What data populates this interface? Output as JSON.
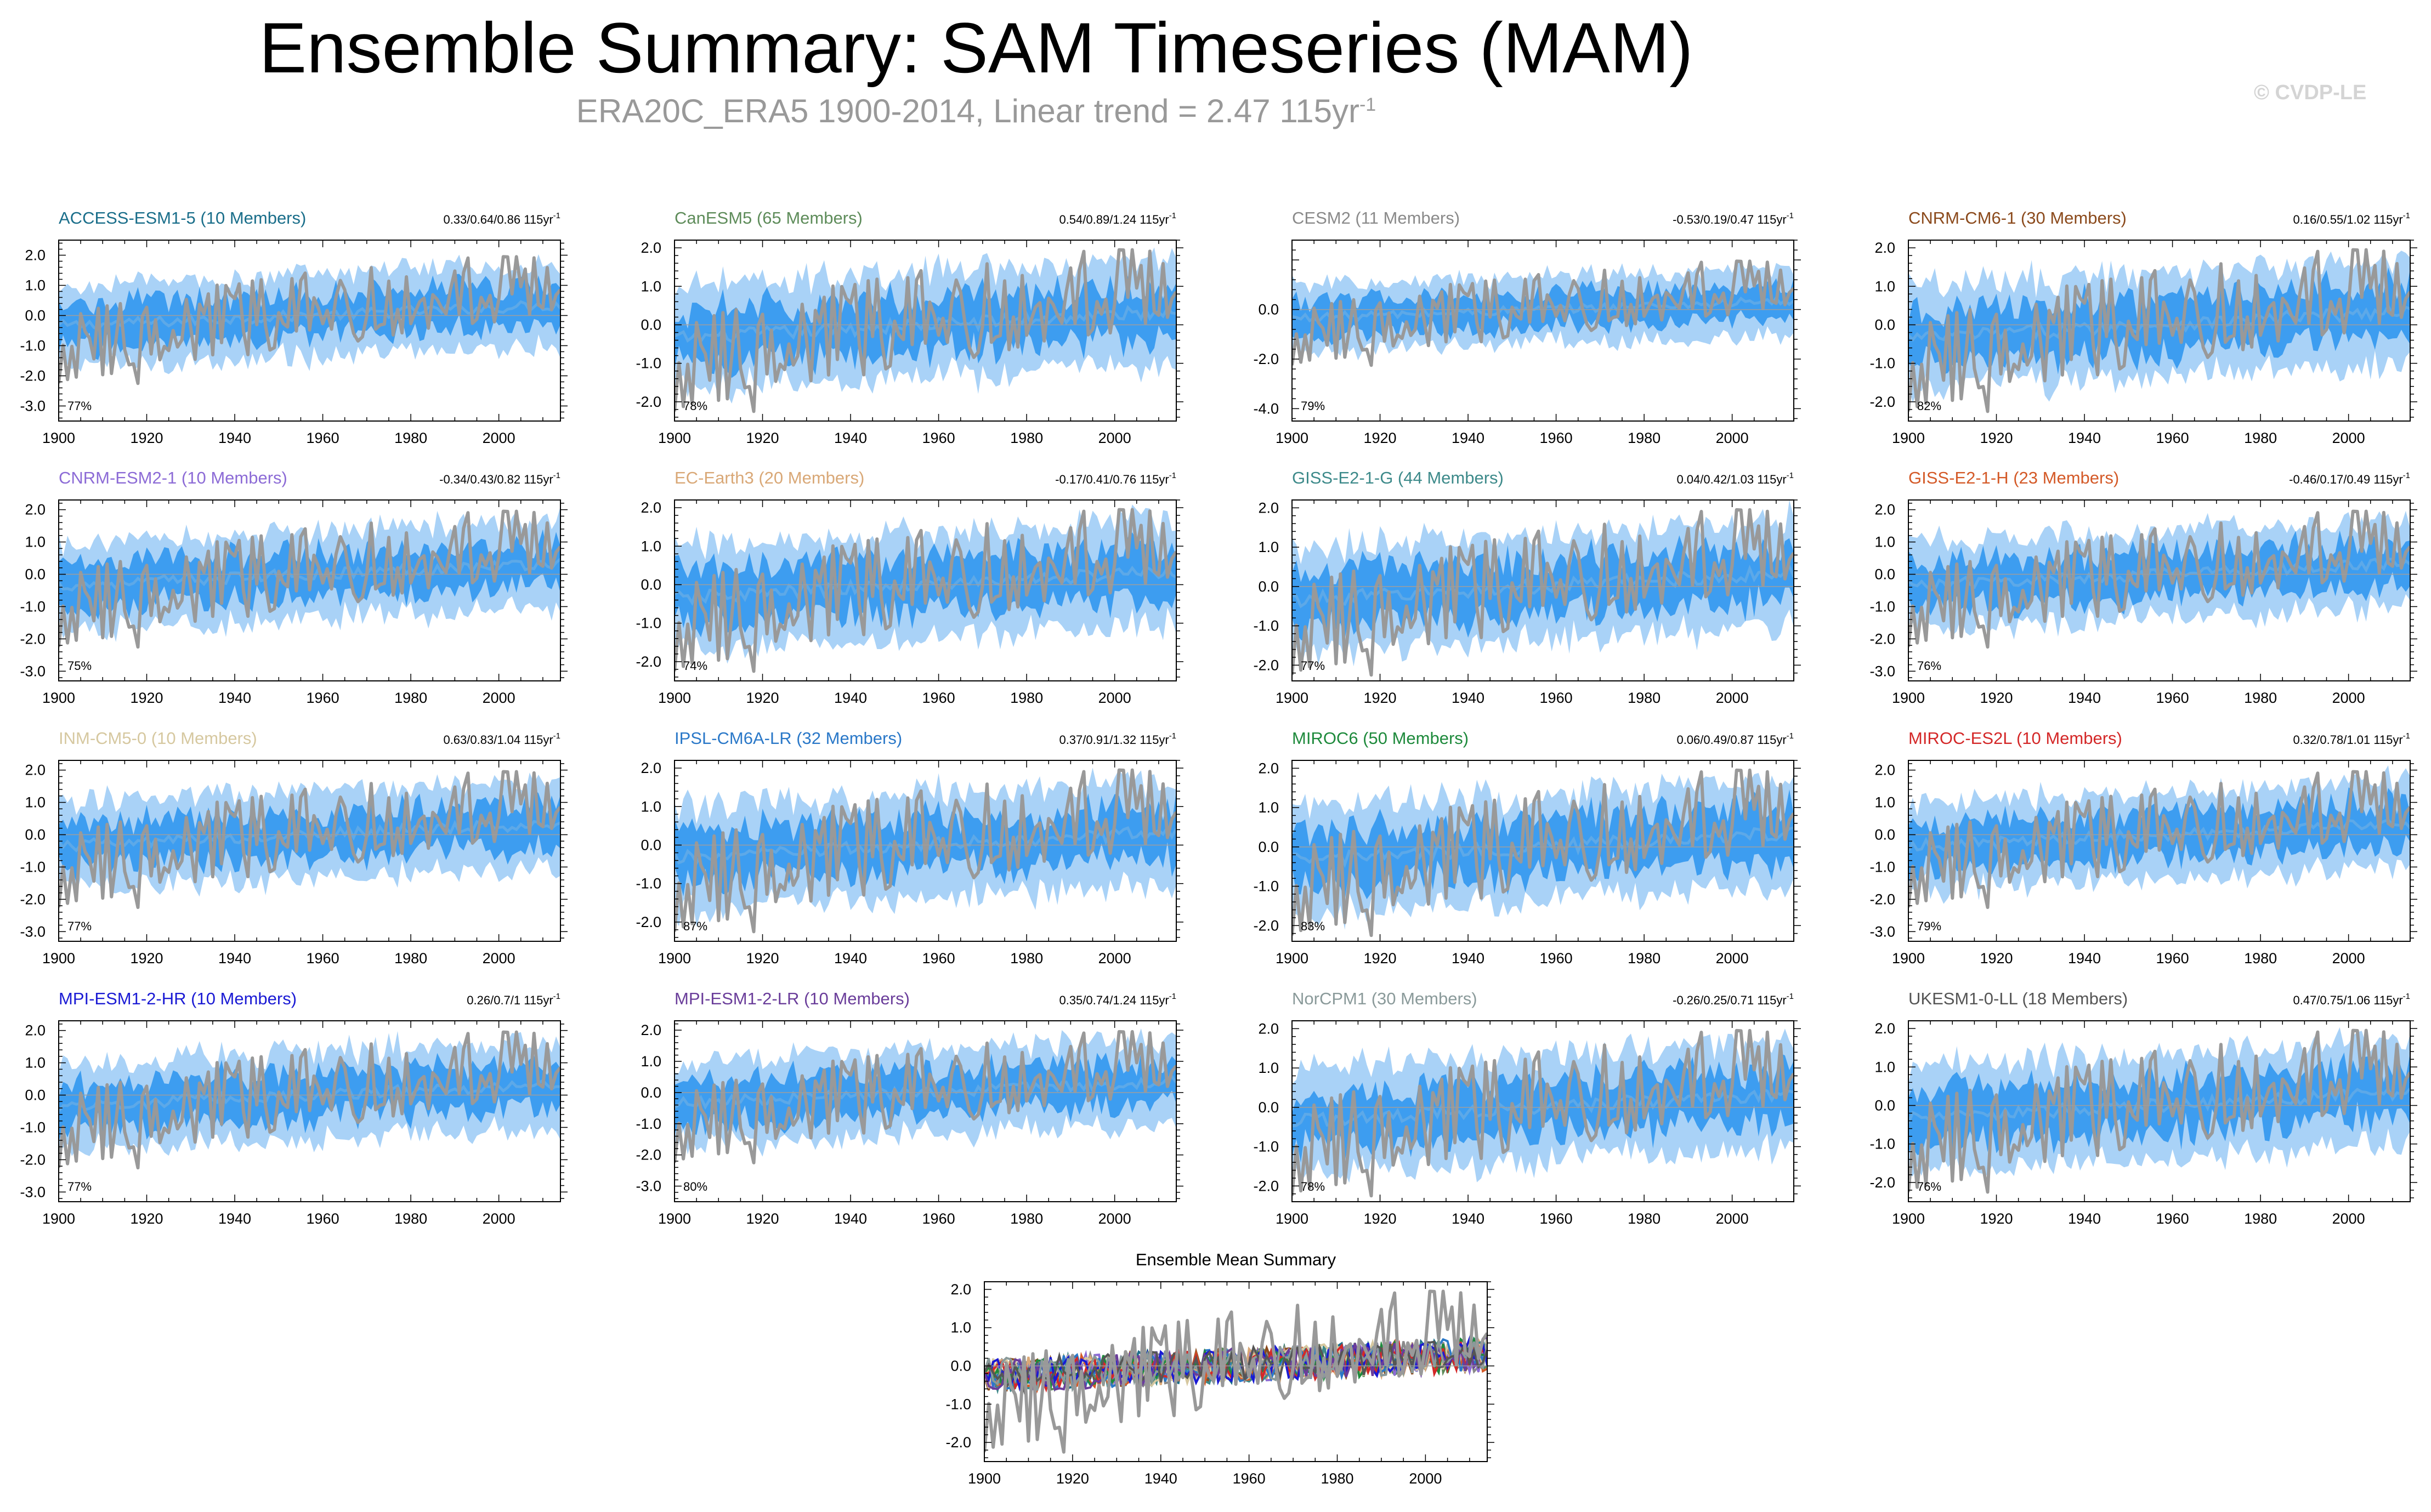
{
  "header": {
    "title": "Ensemble Summary: SAM Timeseries (MAM)",
    "subtitle_main": "ERA20C_ERA5 1900-2014, Linear trend = 2.47 115yr",
    "subtitle_sup": "-1",
    "watermark": "© CVDP-LE"
  },
  "colors": {
    "band_outer": "#a9d2f7",
    "band_inner": "#3d9df0",
    "mean_line": "#5da9e8",
    "observed": "#999999"
  },
  "chart_data": [
    {
      "type": "line",
      "title": "ACCESS-ESM1-5 (10 Members)",
      "title_color": "#1a6e8a",
      "stats": "0.33/0.64/0.86 115yr",
      "stats_sup": "-1",
      "percent": "77%",
      "ylim": [
        -3.5,
        2.5
      ],
      "yticks": [
        2,
        1,
        0,
        -1,
        -2,
        -3
      ],
      "ytick_labels": [
        "2.0",
        "1.0",
        "0.0",
        "-1.0",
        "-2.0",
        "-3.0"
      ],
      "xlim": [
        1900,
        2014
      ],
      "xticks": [
        1900,
        1920,
        1940,
        1960,
        1980,
        2000
      ],
      "ylabel": "",
      "xlabel": ""
    },
    {
      "type": "line",
      "title": "CanESM5 (65 Members)",
      "title_color": "#5e8c5a",
      "stats": "0.54/0.89/1.24 115yr",
      "stats_sup": "-1",
      "percent": "78%",
      "ylim": [
        -2.5,
        2.2
      ],
      "yticks": [
        2,
        1,
        0,
        -1,
        -2
      ],
      "ytick_labels": [
        "2.0",
        "1.0",
        "0.0",
        "-1.0",
        "-2.0"
      ],
      "xlim": [
        1900,
        2014
      ],
      "xticks": [
        1900,
        1920,
        1940,
        1960,
        1980,
        2000
      ],
      "ylabel": "",
      "xlabel": ""
    },
    {
      "type": "line",
      "title": "CESM2 (11 Members)",
      "title_color": "#8a8a8a",
      "stats": "-0.53/0.19/0.47 115yr",
      "stats_sup": "-1",
      "percent": "79%",
      "ylim": [
        -4.5,
        2.8
      ],
      "yticks": [
        0,
        -2,
        -4
      ],
      "ytick_labels": [
        "0.0",
        "-2.0",
        "-4.0"
      ],
      "xlim": [
        1900,
        2014
      ],
      "xticks": [
        1900,
        1920,
        1940,
        1960,
        1980,
        2000
      ],
      "ylabel": "",
      "xlabel": ""
    },
    {
      "type": "line",
      "title": "CNRM-CM6-1 (30 Members)",
      "title_color": "#8b4a1c",
      "stats": "0.16/0.55/1.02 115yr",
      "stats_sup": "-1",
      "percent": "82%",
      "ylim": [
        -2.5,
        2.2
      ],
      "yticks": [
        2,
        1,
        0,
        -1,
        -2
      ],
      "ytick_labels": [
        "2.0",
        "1.0",
        "0.0",
        "-1.0",
        "-2.0"
      ],
      "xlim": [
        1900,
        2014
      ],
      "xticks": [
        1900,
        1920,
        1940,
        1960,
        1980,
        2000
      ],
      "ylabel": "",
      "xlabel": ""
    },
    {
      "type": "line",
      "title": "CNRM-ESM2-1 (10 Members)",
      "title_color": "#8c6bd6",
      "stats": "-0.34/0.43/0.82 115yr",
      "stats_sup": "-1",
      "percent": "75%",
      "ylim": [
        -3.3,
        2.3
      ],
      "yticks": [
        2,
        1,
        0,
        -1,
        -2,
        -3
      ],
      "ytick_labels": [
        "2.0",
        "1.0",
        "0.0",
        "-1.0",
        "-2.0",
        "-3.0"
      ],
      "xlim": [
        1900,
        2014
      ],
      "xticks": [
        1900,
        1920,
        1940,
        1960,
        1980,
        2000
      ],
      "ylabel": "",
      "xlabel": ""
    },
    {
      "type": "line",
      "title": "EC-Earth3 (20 Members)",
      "title_color": "#d9a877",
      "stats": "-0.17/0.41/0.76 115yr",
      "stats_sup": "-1",
      "percent": "74%",
      "ylim": [
        -2.5,
        2.2
      ],
      "yticks": [
        2,
        1,
        0,
        -1,
        -2
      ],
      "ytick_labels": [
        "2.0",
        "1.0",
        "0.0",
        "-1.0",
        "-2.0"
      ],
      "xlim": [
        1900,
        2014
      ],
      "xticks": [
        1900,
        1920,
        1940,
        1960,
        1980,
        2000
      ],
      "ylabel": "",
      "xlabel": ""
    },
    {
      "type": "line",
      "title": "GISS-E2-1-G (44 Members)",
      "title_color": "#3d8a8a",
      "stats": "0.04/0.42/1.03 115yr",
      "stats_sup": "-1",
      "percent": "77%",
      "ylim": [
        -2.4,
        2.2
      ],
      "yticks": [
        2,
        1,
        0,
        -1,
        -2
      ],
      "ytick_labels": [
        "2.0",
        "1.0",
        "0.0",
        "-1.0",
        "-2.0"
      ],
      "xlim": [
        1900,
        2014
      ],
      "xticks": [
        1900,
        1920,
        1940,
        1960,
        1980,
        2000
      ],
      "ylabel": "",
      "xlabel": ""
    },
    {
      "type": "line",
      "title": "GISS-E2-1-H (23 Members)",
      "title_color": "#d45a28",
      "stats": "-0.46/0.17/0.49 115yr",
      "stats_sup": "-1",
      "percent": "76%",
      "ylim": [
        -3.3,
        2.3
      ],
      "yticks": [
        2,
        1,
        0,
        -1,
        -2,
        -3
      ],
      "ytick_labels": [
        "2.0",
        "1.0",
        "0.0",
        "-1.0",
        "-2.0",
        "-3.0"
      ],
      "xlim": [
        1900,
        2014
      ],
      "xticks": [
        1900,
        1920,
        1940,
        1960,
        1980,
        2000
      ],
      "ylabel": "",
      "xlabel": ""
    },
    {
      "type": "line",
      "title": "INM-CM5-0 (10 Members)",
      "title_color": "#d6c8a0",
      "stats": "0.63/0.83/1.04 115yr",
      "stats_sup": "-1",
      "percent": "77%",
      "ylim": [
        -3.3,
        2.3
      ],
      "yticks": [
        2,
        1,
        0,
        -1,
        -2,
        -3
      ],
      "ytick_labels": [
        "2.0",
        "1.0",
        "0.0",
        "-1.0",
        "-2.0",
        "-3.0"
      ],
      "xlim": [
        1900,
        2014
      ],
      "xticks": [
        1900,
        1920,
        1940,
        1960,
        1980,
        2000
      ],
      "ylabel": "",
      "xlabel": ""
    },
    {
      "type": "line",
      "title": "IPSL-CM6A-LR (32 Members)",
      "title_color": "#2a78c8",
      "stats": "0.37/0.91/1.32 115yr",
      "stats_sup": "-1",
      "percent": "87%",
      "ylim": [
        -2.5,
        2.2
      ],
      "yticks": [
        2,
        1,
        0,
        -1,
        -2
      ],
      "ytick_labels": [
        "2.0",
        "1.0",
        "0.0",
        "-1.0",
        "-2.0"
      ],
      "xlim": [
        1900,
        2014
      ],
      "xticks": [
        1900,
        1920,
        1940,
        1960,
        1980,
        2000
      ],
      "ylabel": "",
      "xlabel": ""
    },
    {
      "type": "line",
      "title": "MIROC6 (50 Members)",
      "title_color": "#1e8a3c",
      "stats": "0.06/0.49/0.87 115yr",
      "stats_sup": "-1",
      "percent": "83%",
      "ylim": [
        -2.4,
        2.2
      ],
      "yticks": [
        2,
        1,
        0,
        -1,
        -2
      ],
      "ytick_labels": [
        "2.0",
        "1.0",
        "0.0",
        "-1.0",
        "-2.0"
      ],
      "xlim": [
        1900,
        2014
      ],
      "xticks": [
        1900,
        1920,
        1940,
        1960,
        1980,
        2000
      ],
      "ylabel": "",
      "xlabel": ""
    },
    {
      "type": "line",
      "title": "MIROC-ES2L (10 Members)",
      "title_color": "#d42828",
      "stats": "0.32/0.78/1.01 115yr",
      "stats_sup": "-1",
      "percent": "79%",
      "ylim": [
        -3.3,
        2.3
      ],
      "yticks": [
        2,
        1,
        0,
        -1,
        -2,
        -3
      ],
      "ytick_labels": [
        "2.0",
        "1.0",
        "0.0",
        "-1.0",
        "-2.0",
        "-3.0"
      ],
      "xlim": [
        1900,
        2014
      ],
      "xticks": [
        1900,
        1920,
        1940,
        1960,
        1980,
        2000
      ],
      "ylabel": "",
      "xlabel": ""
    },
    {
      "type": "line",
      "title": "MPI-ESM1-2-HR (10 Members)",
      "title_color": "#1a1ad4",
      "stats": "0.26/0.7/1 115yr",
      "stats_sup": "-1",
      "percent": "77%",
      "ylim": [
        -3.3,
        2.3
      ],
      "yticks": [
        2,
        1,
        0,
        -1,
        -2,
        -3
      ],
      "ytick_labels": [
        "2.0",
        "1.0",
        "0.0",
        "-1.0",
        "-2.0",
        "-3.0"
      ],
      "xlim": [
        1900,
        2014
      ],
      "xticks": [
        1900,
        1920,
        1940,
        1960,
        1980,
        2000
      ],
      "ylabel": "",
      "xlabel": ""
    },
    {
      "type": "line",
      "title": "MPI-ESM1-2-LR (10 Members)",
      "title_color": "#6a3d9a",
      "stats": "0.35/0.74/1.24 115yr",
      "stats_sup": "-1",
      "percent": "80%",
      "ylim": [
        -3.5,
        2.3
      ],
      "yticks": [
        2,
        1,
        0,
        -1,
        -2,
        -3
      ],
      "ytick_labels": [
        "2.0",
        "1.0",
        "0.0",
        "-1.0",
        "-2.0",
        "-3.0"
      ],
      "xlim": [
        1900,
        2014
      ],
      "xticks": [
        1900,
        1920,
        1940,
        1960,
        1980,
        2000
      ],
      "ylabel": "",
      "xlabel": ""
    },
    {
      "type": "line",
      "title": "NorCPM1 (30 Members)",
      "title_color": "#8a9a9a",
      "stats": "-0.26/0.25/0.71 115yr",
      "stats_sup": "-1",
      "percent": "78%",
      "ylim": [
        -2.4,
        2.2
      ],
      "yticks": [
        2,
        1,
        0,
        -1,
        -2
      ],
      "ytick_labels": [
        "2.0",
        "1.0",
        "0.0",
        "-1.0",
        "-2.0"
      ],
      "xlim": [
        1900,
        2014
      ],
      "xticks": [
        1900,
        1920,
        1940,
        1960,
        1980,
        2000
      ],
      "ylabel": "",
      "xlabel": ""
    },
    {
      "type": "line",
      "title": "UKESM1-0-LL (18 Members)",
      "title_color": "#555555",
      "stats": "0.47/0.75/1.06 115yr",
      "stats_sup": "-1",
      "percent": "76%",
      "ylim": [
        -2.5,
        2.2
      ],
      "yticks": [
        2,
        1,
        0,
        -1,
        -2
      ],
      "ytick_labels": [
        "2.0",
        "1.0",
        "0.0",
        "-1.0",
        "-2.0"
      ],
      "xlim": [
        1900,
        2014
      ],
      "xticks": [
        1900,
        1920,
        1940,
        1960,
        1980,
        2000
      ],
      "ylabel": "",
      "xlabel": ""
    },
    {
      "type": "line",
      "title": "Ensemble Mean Summary",
      "title_color": "#000000",
      "stats": "",
      "stats_sup": "",
      "percent": "",
      "ylim": [
        -2.5,
        2.2
      ],
      "yticks": [
        2,
        1,
        0,
        -1,
        -2
      ],
      "ytick_labels": [
        "2.0",
        "1.0",
        "0.0",
        "-1.0",
        "-2.0"
      ],
      "xlim": [
        1900,
        2014
      ],
      "xticks": [
        1900,
        1920,
        1940,
        1960,
        1980,
        2000
      ],
      "ylabel": "",
      "xlabel": "",
      "series_colors": [
        "#1a6e8a",
        "#5e8c5a",
        "#8a8a8a",
        "#8b4a1c",
        "#8c6bd6",
        "#d9a877",
        "#3d8a8a",
        "#d45a28",
        "#d6c8a0",
        "#2a78c8",
        "#1e8a3c",
        "#d42828",
        "#1a1ad4",
        "#6a3d9a",
        "#8a9a9a",
        "#555555"
      ]
    }
  ]
}
